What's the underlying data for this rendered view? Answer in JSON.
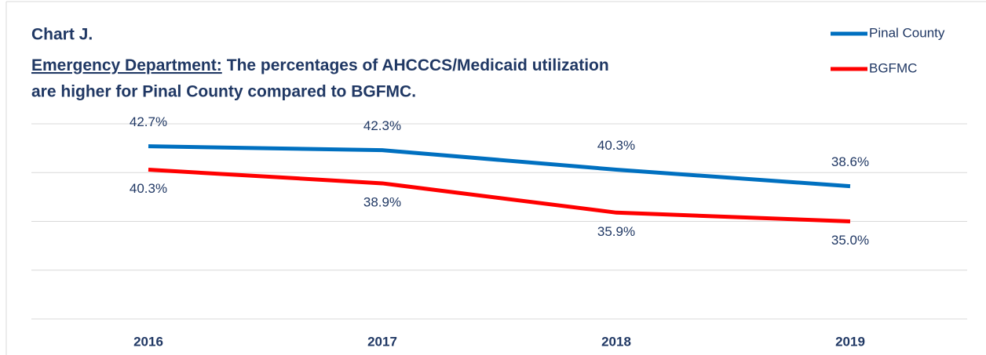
{
  "chart_data": {
    "type": "line",
    "title": "Chart J.",
    "subtitle_lead": "Emergency Department:",
    "subtitle": [
      "The percentages of AHCCCS/Medicaid utilization",
      "are higher for Pinal County compared to BGFMC."
    ],
    "categories": [
      "2016",
      "2017",
      "2018",
      "2019"
    ],
    "series": [
      {
        "name": "Pinal County",
        "color": "#0070c0",
        "values": [
          42.7,
          42.3,
          40.3,
          38.6
        ],
        "value_labels": [
          "42.7%",
          "42.3%",
          "40.3%",
          "38.6%"
        ]
      },
      {
        "name": "BGFMC",
        "color": "#ff0000",
        "values": [
          40.3,
          38.9,
          35.9,
          35.0
        ],
        "value_labels": [
          "40.3%",
          "38.9%",
          "35.9%",
          "35.0%"
        ]
      }
    ],
    "ylim": [
      25,
      45
    ],
    "yticks": [
      25,
      30,
      35,
      40,
      45
    ],
    "grid": true,
    "legend": "top-right"
  }
}
